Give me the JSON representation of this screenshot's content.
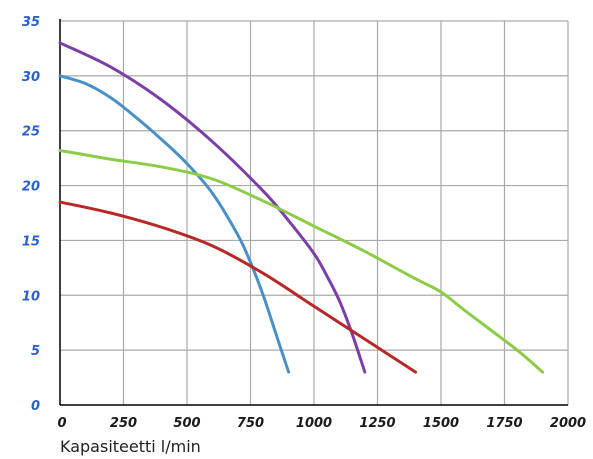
{
  "chart_data": {
    "type": "line",
    "title": "",
    "xlabel": "Kapasiteetti l/min",
    "ylabel": "",
    "xlim": [
      0,
      2000
    ],
    "ylim": [
      0,
      35
    ],
    "x_ticks": [
      0,
      250,
      500,
      750,
      1000,
      1250,
      1500,
      1750,
      2000
    ],
    "y_ticks": [
      0,
      5,
      10,
      15,
      20,
      25,
      30,
      35
    ],
    "x_tick_labels": [
      "0",
      "250",
      "500",
      "750",
      "1000",
      "1250",
      "1500",
      "1750",
      "2000"
    ],
    "y_tick_labels": [
      "0",
      "5",
      "10",
      "15",
      "20",
      "25",
      "30",
      "35"
    ],
    "grid": true,
    "colors": {
      "y_tick": "#2b5fd0",
      "x_tick": "#1a1a1a",
      "grid": "#aaaaaa",
      "axis": "#000000",
      "xlabel": "#222222"
    },
    "series": [
      {
        "color": "#4a90c8",
        "x": [
          0,
          100,
          200,
          300,
          400,
          500,
          600,
          700,
          750,
          800,
          850,
          900
        ],
        "y": [
          30,
          29.3,
          28,
          26.2,
          24.2,
          22,
          19.3,
          15.5,
          13,
          10,
          6.5,
          3
        ]
      },
      {
        "color": "#7b3fa6",
        "x": [
          0,
          200,
          400,
          600,
          800,
          900,
          1000,
          1050,
          1100,
          1150,
          1200
        ],
        "y": [
          33,
          30.8,
          27.8,
          24,
          19.5,
          16.8,
          13.8,
          11.8,
          9.5,
          6.5,
          3
        ]
      },
      {
        "color": "#8dcc48",
        "x": [
          0,
          200,
          400,
          600,
          800,
          1000,
          1200,
          1400,
          1500,
          1600,
          1800,
          1900
        ],
        "y": [
          23.2,
          22.4,
          21.7,
          20.6,
          18.6,
          16.3,
          14,
          11.5,
          10.3,
          8.5,
          5,
          3
        ]
      },
      {
        "color": "#b82828",
        "x": [
          0,
          200,
          400,
          600,
          800,
          1000,
          1200,
          1400
        ],
        "y": [
          18.5,
          17.5,
          16.2,
          14.5,
          12,
          9,
          6,
          3
        ]
      }
    ]
  }
}
